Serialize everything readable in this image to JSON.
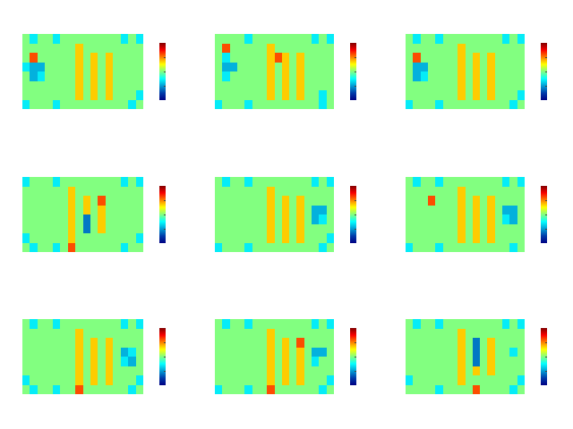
{
  "chart_data": [
    {
      "type": "heatmap",
      "tick_labels": false,
      "zlim": [
        -1,
        1
      ],
      "cells": [
        [
          0,
          -0.3,
          0,
          0,
          -0.3,
          0,
          0,
          0,
          0,
          0,
          0,
          0,
          0,
          -0.3,
          0,
          -0.3
        ],
        [
          0,
          0,
          0,
          0,
          0,
          0,
          0,
          0.35,
          0,
          0,
          0,
          0,
          0,
          0,
          0,
          0
        ],
        [
          0,
          0.6,
          0,
          0,
          0,
          0,
          0,
          0.35,
          0,
          0.35,
          0,
          0.35,
          0,
          0,
          0,
          0
        ],
        [
          -0.3,
          -0.45,
          -0.45,
          0,
          0,
          0,
          0,
          0.35,
          0,
          0.35,
          0,
          0.35,
          0,
          0,
          0,
          0
        ],
        [
          0,
          -0.45,
          -0.3,
          0,
          0,
          0,
          0,
          0.35,
          0,
          0.35,
          0,
          0.35,
          0,
          0,
          0,
          0
        ],
        [
          0,
          0,
          0,
          0,
          0,
          0,
          0,
          0.35,
          0,
          0.35,
          0,
          0.35,
          0,
          0,
          0,
          0
        ],
        [
          0,
          0,
          0,
          0,
          0,
          0,
          0,
          0.35,
          0,
          0.35,
          0,
          0.35,
          0,
          0,
          0,
          -0.3
        ],
        [
          -0.3,
          0,
          0,
          0,
          -0.3,
          0,
          0,
          0,
          0,
          0,
          0,
          0,
          0,
          0,
          -0.3,
          0
        ]
      ]
    },
    {
      "type": "heatmap",
      "tick_labels": false,
      "zlim": [
        -1,
        1
      ],
      "cells": [
        [
          0,
          0,
          0,
          0,
          -0.3,
          0,
          0,
          0,
          0,
          0,
          0,
          0,
          0,
          -0.3,
          0,
          -0.3
        ],
        [
          0,
          0.6,
          0,
          0,
          0,
          0,
          0,
          0.35,
          0,
          0,
          0,
          0,
          0,
          0,
          0,
          0
        ],
        [
          0,
          -0.3,
          0,
          0,
          0,
          0,
          0,
          0.35,
          0.6,
          0.35,
          0,
          0.35,
          0,
          0,
          0,
          0
        ],
        [
          0,
          -0.45,
          -0.45,
          0,
          0,
          0,
          0,
          0.35,
          0,
          0.35,
          0,
          0.35,
          0,
          0,
          0,
          0
        ],
        [
          0,
          -0.3,
          0,
          0,
          0,
          0,
          0,
          0.35,
          0,
          0.35,
          0,
          0.35,
          0,
          0,
          0,
          0
        ],
        [
          0,
          0,
          0,
          0,
          0,
          0,
          0,
          0.35,
          0,
          0.35,
          0,
          0.35,
          0,
          0,
          0,
          0
        ],
        [
          0,
          0,
          0,
          0,
          0,
          0,
          0,
          0.35,
          0,
          0.35,
          0,
          0.35,
          0,
          0,
          -0.3,
          0
        ],
        [
          -0.3,
          0,
          0,
          0,
          -0.3,
          0,
          0,
          0,
          0,
          0,
          0,
          0,
          0,
          0,
          -0.3,
          0
        ]
      ]
    },
    {
      "type": "heatmap",
      "tick_labels": false,
      "zlim": [
        -1,
        1
      ],
      "cells": [
        [
          0,
          -0.3,
          0,
          0,
          -0.3,
          0,
          0,
          0,
          0,
          0,
          0,
          0,
          0,
          -0.3,
          0,
          -0.3
        ],
        [
          0,
          0,
          0,
          0,
          0,
          0,
          0,
          0.35,
          0,
          0,
          0,
          0,
          0,
          0,
          0,
          0
        ],
        [
          0,
          0.6,
          0,
          0,
          0,
          0,
          0,
          0.35,
          0,
          0.35,
          0,
          0.35,
          0,
          0,
          0,
          0
        ],
        [
          0,
          -0.45,
          -0.45,
          0,
          0,
          0,
          0,
          0.35,
          0,
          0.35,
          0,
          0.35,
          0,
          0,
          0,
          0
        ],
        [
          0,
          -0.45,
          -0.3,
          0,
          0,
          0,
          0,
          0.35,
          0,
          0.35,
          0,
          0.35,
          0,
          0,
          0,
          0
        ],
        [
          0,
          0,
          0,
          0,
          0,
          0,
          0,
          0.35,
          0,
          0.35,
          0,
          0.35,
          0,
          0,
          0,
          0
        ],
        [
          0,
          0,
          0,
          0,
          0,
          0,
          0,
          0.35,
          0,
          0.35,
          0,
          0.35,
          0,
          0,
          0,
          -0.3
        ],
        [
          -0.3,
          0,
          0,
          0,
          -0.3,
          0,
          0,
          0,
          0,
          0,
          0,
          0,
          0,
          0,
          -0.3,
          0
        ]
      ]
    },
    {
      "type": "heatmap",
      "tick_labels": false,
      "zlim": [
        -1,
        1
      ],
      "cells": [
        [
          -0.3,
          0,
          0,
          0,
          -0.3,
          0,
          0,
          0,
          0,
          0,
          0,
          0,
          0,
          -0.3,
          0,
          -0.3
        ],
        [
          0,
          0,
          0,
          0,
          0,
          0,
          0.35,
          0,
          0,
          0,
          0,
          0,
          0,
          0,
          0,
          0
        ],
        [
          0,
          0,
          0,
          0,
          0,
          0,
          0.35,
          0,
          0.35,
          0,
          0.6,
          0,
          0,
          0,
          0,
          0
        ],
        [
          0,
          0,
          0,
          0,
          0,
          0,
          0.35,
          0,
          0.35,
          0,
          0.35,
          0,
          0,
          0,
          0,
          0
        ],
        [
          0,
          0,
          0,
          0,
          0,
          0,
          0.35,
          0,
          -0.6,
          0,
          0.35,
          0,
          0,
          0,
          0,
          0
        ],
        [
          0,
          0,
          0,
          0,
          0,
          0,
          0.35,
          0,
          -0.6,
          0,
          0.35,
          0,
          0,
          0,
          0,
          0
        ],
        [
          -0.3,
          0,
          0,
          0,
          0,
          0,
          0.35,
          0,
          0,
          0,
          0,
          0,
          0,
          0,
          0,
          -0.3
        ],
        [
          0,
          -0.3,
          0,
          0,
          -0.3,
          0,
          0.6,
          0,
          0,
          0,
          0,
          0,
          0,
          -0.3,
          0,
          0
        ]
      ]
    },
    {
      "type": "heatmap",
      "tick_labels": false,
      "zlim": [
        -1,
        1
      ],
      "cells": [
        [
          0,
          -0.3,
          0,
          0,
          -0.3,
          0,
          0,
          0,
          0,
          0,
          0,
          0,
          0,
          -0.3,
          0,
          -0.3
        ],
        [
          0,
          0,
          0,
          0,
          0,
          0,
          0,
          0.35,
          0,
          0,
          0,
          0,
          0,
          0,
          0,
          0
        ],
        [
          0,
          0,
          0,
          0,
          0,
          0,
          0,
          0.35,
          0,
          0.35,
          0,
          0.35,
          0,
          0,
          0,
          0
        ],
        [
          0,
          0,
          0,
          0,
          0,
          0,
          0,
          0.35,
          0,
          0.35,
          0,
          0.35,
          0,
          -0.45,
          -0.45,
          0
        ],
        [
          0,
          0,
          0,
          0,
          0,
          0,
          0,
          0.35,
          0,
          0.35,
          0,
          0.35,
          0,
          -0.45,
          -0.3,
          0
        ],
        [
          0,
          0,
          0,
          0,
          0,
          0,
          0,
          0.35,
          0,
          0.35,
          0,
          0.35,
          0,
          0,
          0,
          0
        ],
        [
          0,
          0,
          0,
          0,
          0,
          0,
          0,
          0.35,
          0,
          0.35,
          0,
          0.35,
          0,
          0,
          0,
          -0.3
        ],
        [
          -0.3,
          0,
          0,
          0,
          -0.3,
          0,
          0,
          0,
          0,
          0,
          0,
          0,
          0,
          0,
          -0.3,
          0
        ]
      ]
    },
    {
      "type": "heatmap",
      "tick_labels": false,
      "zlim": [
        -1,
        1
      ],
      "cells": [
        [
          0,
          -0.3,
          0,
          0,
          -0.3,
          0,
          0,
          0,
          0,
          0,
          0,
          0,
          0,
          -0.3,
          0,
          -0.3
        ],
        [
          0,
          0,
          0,
          0,
          0,
          0,
          0,
          0.35,
          0,
          0,
          0,
          0,
          0,
          0,
          0,
          0
        ],
        [
          0,
          0,
          0,
          0.6,
          0,
          0,
          0,
          0.35,
          0,
          0.35,
          0,
          0.35,
          0,
          0,
          0,
          0
        ],
        [
          0,
          0,
          0,
          0,
          0,
          0,
          0,
          0.35,
          0,
          0.35,
          0,
          0.35,
          0,
          -0.45,
          -0.45,
          0
        ],
        [
          0,
          0,
          0,
          0,
          0,
          0,
          0,
          0.35,
          0,
          0.35,
          0,
          0.35,
          0,
          -0.3,
          -0.45,
          0
        ],
        [
          0,
          0,
          0,
          0,
          0,
          0,
          0,
          0.35,
          0,
          0.35,
          0,
          0.35,
          0,
          0,
          0,
          0
        ],
        [
          0,
          0,
          0,
          0,
          0,
          0,
          0,
          0.35,
          0,
          0.35,
          0,
          0.35,
          0,
          0,
          0,
          0
        ],
        [
          -0.3,
          0,
          0,
          0,
          -0.3,
          0,
          0,
          0,
          0,
          0,
          0,
          0,
          0,
          0,
          -0.3,
          0
        ]
      ]
    },
    {
      "type": "heatmap",
      "tick_labels": false,
      "zlim": [
        -1,
        1
      ],
      "cells": [
        [
          0,
          -0.3,
          0,
          0,
          -0.3,
          0,
          0,
          0,
          0,
          0,
          0,
          0,
          0,
          -0.3,
          0,
          -0.3
        ],
        [
          0,
          0,
          0,
          0,
          0,
          0,
          0,
          0.35,
          0,
          0,
          0,
          0,
          0,
          0,
          0,
          0
        ],
        [
          0,
          0,
          0,
          0,
          0,
          0,
          0,
          0.35,
          0,
          0.35,
          0,
          0.35,
          0,
          0,
          0,
          0
        ],
        [
          0,
          0,
          0,
          0,
          0,
          0,
          0,
          0.35,
          0,
          0.35,
          0,
          0.35,
          0,
          -0.45,
          -0.3,
          0
        ],
        [
          0,
          0,
          0,
          0,
          0,
          0,
          0,
          0.35,
          0,
          0.35,
          0,
          0.35,
          0,
          -0.3,
          -0.45,
          0
        ],
        [
          0,
          0,
          0,
          0,
          0,
          0,
          0,
          0.35,
          0,
          0.35,
          0,
          0.35,
          0,
          0,
          0,
          0
        ],
        [
          -0.3,
          0,
          0,
          0,
          0,
          0,
          0,
          0.35,
          0,
          0.35,
          0,
          0.35,
          0,
          0,
          0,
          -0.3
        ],
        [
          0,
          -0.3,
          0,
          0,
          -0.3,
          0,
          0,
          0.6,
          0,
          0,
          0,
          0,
          0,
          0,
          -0.3,
          0
        ]
      ]
    },
    {
      "type": "heatmap",
      "tick_labels": false,
      "zlim": [
        -1,
        1
      ],
      "cells": [
        [
          0,
          -0.3,
          0,
          0,
          -0.3,
          0,
          0,
          0,
          0,
          0,
          0,
          0,
          0,
          -0.3,
          0,
          -0.3
        ],
        [
          0,
          0,
          0,
          0,
          0,
          0,
          0,
          0.35,
          0,
          0,
          0,
          0,
          0,
          0,
          0,
          0
        ],
        [
          0,
          0,
          0,
          0,
          0,
          0,
          0,
          0.35,
          0,
          0.35,
          0,
          0.6,
          0,
          0,
          0,
          0
        ],
        [
          0,
          0,
          0,
          0,
          0,
          0,
          0,
          0.35,
          0,
          0.35,
          0,
          0.35,
          0,
          -0.45,
          -0.45,
          0
        ],
        [
          0,
          0,
          0,
          0,
          0,
          0,
          0,
          0.35,
          0,
          0.35,
          0,
          0.35,
          0,
          -0.3,
          0,
          0
        ],
        [
          0,
          0,
          0,
          0,
          0,
          0,
          0,
          0.35,
          0,
          0.35,
          0,
          0.35,
          0,
          0,
          0,
          0
        ],
        [
          0,
          0,
          0,
          0,
          0,
          0,
          0,
          0.35,
          0,
          0.35,
          0,
          0.35,
          0,
          0,
          0,
          -0.3
        ],
        [
          -0.3,
          0,
          0,
          0,
          -0.3,
          0,
          0,
          0.6,
          0,
          0,
          0,
          0,
          0,
          0,
          -0.3,
          0
        ]
      ]
    },
    {
      "type": "heatmap",
      "tick_labels": false,
      "zlim": [
        -1,
        1
      ],
      "cells": [
        [
          0,
          -0.3,
          0,
          0,
          -0.3,
          0,
          0,
          0,
          0,
          0,
          0,
          0,
          0,
          -0.3,
          0,
          -0.3
        ],
        [
          0,
          0,
          0,
          0,
          0,
          0,
          0,
          0.35,
          0,
          0,
          0,
          0,
          0,
          0,
          0,
          0
        ],
        [
          0,
          0,
          0,
          0,
          0,
          0,
          0,
          0.35,
          0,
          -0.6,
          0,
          0.35,
          0,
          0,
          0,
          0
        ],
        [
          0,
          0,
          0,
          0,
          0,
          0,
          0,
          0.35,
          0,
          -0.6,
          0,
          0.35,
          0,
          0,
          -0.3,
          0
        ],
        [
          0,
          0,
          0,
          0,
          0,
          0,
          0,
          0.35,
          0,
          -0.6,
          0,
          0.35,
          0,
          0,
          0,
          0
        ],
        [
          0,
          0,
          0,
          0,
          0,
          0,
          0,
          0.35,
          0,
          0.35,
          0,
          0.35,
          0,
          0,
          0,
          0
        ],
        [
          -0.3,
          0,
          0,
          0,
          0,
          0,
          0,
          0.35,
          0,
          0,
          0,
          0,
          0,
          0,
          0,
          -0.3
        ],
        [
          0,
          0,
          0,
          0,
          -0.3,
          0,
          0,
          0,
          0,
          0.6,
          0,
          0,
          0,
          0,
          -0.3,
          0
        ]
      ]
    }
  ]
}
